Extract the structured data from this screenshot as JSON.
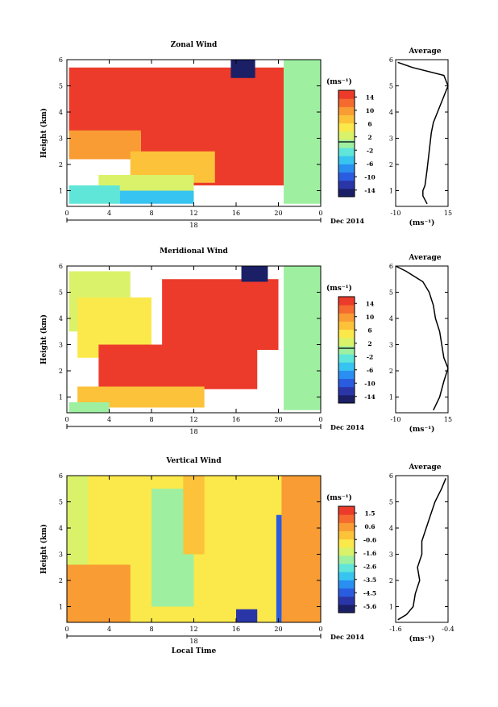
{
  "chart_data": [
    {
      "type": "heatmap",
      "title": "Zonal Wind",
      "ylabel": "Height (km)",
      "x_ticks": [
        "0",
        "4",
        "8",
        "12",
        "16",
        "20",
        "0"
      ],
      "y_ticks": [
        "1",
        "2",
        "3",
        "4",
        "5",
        "6"
      ],
      "ylim": [
        0.4,
        6
      ],
      "xlim": [
        0,
        24
      ],
      "date_label": "18",
      "date_suffix": "Dec 2014",
      "colorbar": {
        "unit": "(ms⁻¹)",
        "ticks": [
          "14",
          "10",
          "6",
          "2",
          "-2",
          "-6",
          "-10",
          "-14"
        ],
        "range": [
          -16,
          16
        ]
      },
      "regions": [
        {
          "x0": 0.2,
          "x1": 20.5,
          "y0": 3.2,
          "y1": 5.7,
          "value": 16
        },
        {
          "x0": 7,
          "x1": 20.5,
          "y0": 1.2,
          "y1": 3.3,
          "value": 14
        },
        {
          "x0": 0.2,
          "x1": 7,
          "y0": 2.2,
          "y1": 3.3,
          "value": 10
        },
        {
          "x0": 6,
          "x1": 14,
          "y0": 1.3,
          "y1": 2.5,
          "value": 8
        },
        {
          "x0": 3,
          "x1": 12,
          "y0": 1.0,
          "y1": 1.6,
          "value": 3
        },
        {
          "x0": 5,
          "x1": 12,
          "y0": 0.5,
          "y1": 1.0,
          "value": -4
        },
        {
          "x0": 0.2,
          "x1": 5,
          "y0": 0.5,
          "y1": 1.2,
          "value": -2
        },
        {
          "x0": 15.5,
          "x1": 17.8,
          "y0": 5.3,
          "y1": 6.0,
          "value": -14
        },
        {
          "x0": 20.5,
          "x1": 24,
          "y0": 0.5,
          "y1": 6.0,
          "value": -1
        }
      ],
      "profile": {
        "title": "Average",
        "xlabel": "(ms⁻¹)",
        "xlim": [
          -10,
          15
        ],
        "x_ticks": [
          "-10",
          "15"
        ],
        "points": [
          [
            5,
            0.5
          ],
          [
            3,
            0.8
          ],
          [
            3,
            1.0
          ],
          [
            4,
            1.2
          ],
          [
            5,
            1.8
          ],
          [
            6,
            2.5
          ],
          [
            7,
            3.2
          ],
          [
            8,
            3.6
          ],
          [
            10,
            4.0
          ],
          [
            12,
            4.4
          ],
          [
            14,
            4.8
          ],
          [
            15,
            5.0
          ],
          [
            13,
            5.4
          ],
          [
            -2,
            5.7
          ],
          [
            -9,
            5.9
          ]
        ]
      }
    },
    {
      "type": "heatmap",
      "title": "Meridional Wind",
      "ylabel": "Height (km)",
      "x_ticks": [
        "0",
        "4",
        "8",
        "12",
        "16",
        "20",
        "0"
      ],
      "y_ticks": [
        "1",
        "2",
        "3",
        "4",
        "5",
        "6"
      ],
      "ylim": [
        0.4,
        6
      ],
      "xlim": [
        0,
        24
      ],
      "date_label": "18",
      "date_suffix": "Dec 2014",
      "colorbar": {
        "unit": "(ms⁻¹)",
        "ticks": [
          "14",
          "10",
          "6",
          "2",
          "-2",
          "-6",
          "-10",
          "-14"
        ],
        "range": [
          -16,
          16
        ]
      },
      "regions": [
        {
          "x0": 0.2,
          "x1": 6,
          "y0": 3.5,
          "y1": 5.8,
          "value": 2
        },
        {
          "x0": 1,
          "x1": 8,
          "y0": 2.5,
          "y1": 4.8,
          "value": 6
        },
        {
          "x0": 9,
          "x1": 20,
          "y0": 2.8,
          "y1": 5.5,
          "value": 16
        },
        {
          "x0": 3,
          "x1": 18,
          "y0": 1.3,
          "y1": 3.0,
          "value": 16
        },
        {
          "x0": 1,
          "x1": 13,
          "y0": 0.6,
          "y1": 1.4,
          "value": 7
        },
        {
          "x0": 0.2,
          "x1": 4,
          "y0": 0.4,
          "y1": 0.8,
          "value": 1
        },
        {
          "x0": 16.5,
          "x1": 19,
          "y0": 5.4,
          "y1": 6.0,
          "value": -14
        },
        {
          "x0": 20.5,
          "x1": 24,
          "y0": 0.5,
          "y1": 6.0,
          "value": -1
        }
      ],
      "profile": {
        "title": "Average",
        "xlabel": "(ms⁻¹)",
        "xlim": [
          -10,
          15
        ],
        "x_ticks": [
          "-10",
          "15"
        ],
        "points": [
          [
            8,
            0.5
          ],
          [
            11,
            1.0
          ],
          [
            13,
            1.6
          ],
          [
            15,
            2.1
          ],
          [
            13,
            2.5
          ],
          [
            12,
            3.0
          ],
          [
            11,
            3.5
          ],
          [
            9,
            4.0
          ],
          [
            8,
            4.5
          ],
          [
            6,
            5.0
          ],
          [
            3,
            5.4
          ],
          [
            -5,
            5.8
          ],
          [
            -10,
            6.0
          ]
        ]
      }
    },
    {
      "type": "heatmap",
      "title": "Vertical Wind",
      "ylabel": "Height (km)",
      "xlabel": "Local Time",
      "x_ticks": [
        "0",
        "4",
        "8",
        "12",
        "16",
        "20",
        "0"
      ],
      "y_ticks": [
        "1",
        "2",
        "3",
        "4",
        "5",
        "6"
      ],
      "ylim": [
        0.4,
        6
      ],
      "xlim": [
        0,
        24
      ],
      "date_label": "18",
      "date_suffix": "Dec 2014",
      "colorbar": {
        "unit": "(ms⁻¹)",
        "ticks": [
          "1.5",
          "0.6",
          "-0.6",
          "-1.6",
          "-2.6",
          "-3.5",
          "-4.5",
          "-5.6"
        ],
        "range": [
          -6.0,
          2.0
        ]
      },
      "regions": [
        {
          "x0": 0,
          "x1": 24,
          "y0": 0.4,
          "y1": 6.0,
          "value": -1.0
        },
        {
          "x0": 0,
          "x1": 6,
          "y0": 0.4,
          "y1": 2.6,
          "value": 0.4
        },
        {
          "x0": 0,
          "x1": 2,
          "y0": 2.6,
          "y1": 6.0,
          "value": -1.4
        },
        {
          "x0": 8,
          "x1": 12,
          "y0": 1.0,
          "y1": 5.5,
          "value": -1.8
        },
        {
          "x0": 11,
          "x1": 13,
          "y0": 3.0,
          "y1": 6.0,
          "value": -0.2
        },
        {
          "x0": 14,
          "x1": 16,
          "y0": 0.4,
          "y1": 6.0,
          "value": -0.5
        },
        {
          "x0": 20.3,
          "x1": 24,
          "y0": 0.4,
          "y1": 6.0,
          "value": 0.4
        },
        {
          "x0": 19.8,
          "x1": 20.3,
          "y0": 0.4,
          "y1": 4.5,
          "value": -4.5
        },
        {
          "x0": 16,
          "x1": 18,
          "y0": 0.4,
          "y1": 0.9,
          "value": -5.0
        }
      ],
      "profile": {
        "title": "Average",
        "xlabel": "(ms⁻¹)",
        "xlim": [
          -1.6,
          -0.4
        ],
        "x_ticks": [
          "-1.6",
          "-0.4"
        ],
        "points": [
          [
            -1.55,
            0.5
          ],
          [
            -1.35,
            0.7
          ],
          [
            -1.2,
            1.0
          ],
          [
            -1.15,
            1.5
          ],
          [
            -1.05,
            2.0
          ],
          [
            -1.1,
            2.5
          ],
          [
            -1.0,
            3.0
          ],
          [
            -1.0,
            3.5
          ],
          [
            -0.9,
            4.0
          ],
          [
            -0.8,
            4.5
          ],
          [
            -0.7,
            5.0
          ],
          [
            -0.55,
            5.5
          ],
          [
            -0.45,
            5.9
          ]
        ]
      }
    }
  ]
}
